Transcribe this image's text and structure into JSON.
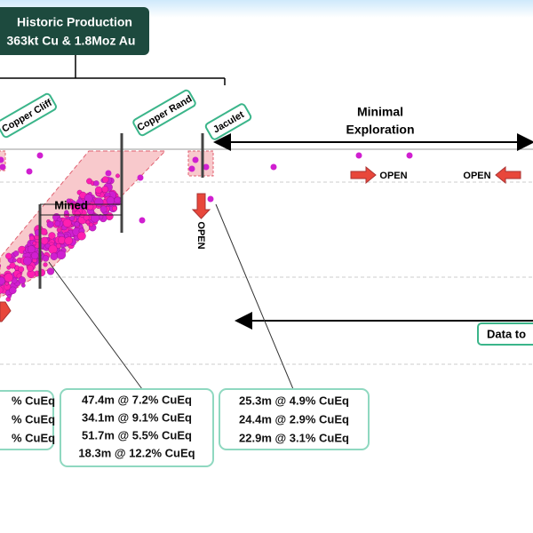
{
  "header": {
    "title": "Historic Production",
    "subtitle": "363kt Cu & 1.8Moz Au"
  },
  "deposits": [
    "Copper Cliff",
    "Copper Rand",
    "Jaculet"
  ],
  "annotations": {
    "exploration_line1": "Minimal",
    "exploration_line2": "Exploration",
    "mined": "Mined",
    "open_down": "OPEN",
    "open_right": "OPEN",
    "open_left": "OPEN",
    "data_to": "Data to"
  },
  "intercepts": {
    "left": [
      "% CuEq",
      "% CuEq",
      "% CuEq"
    ],
    "middle": [
      "47.4m @ 7.2% CuEq",
      "34.1m @ 9.1% CuEq",
      "51.7m @ 5.5% CuEq",
      "18.3m @ 12.2% CuEq"
    ],
    "right": [
      "25.3m @ 4.9% CuEq",
      "24.4m @ 2.9% CuEq",
      "22.9m @ 3.1% CuEq"
    ]
  }
}
